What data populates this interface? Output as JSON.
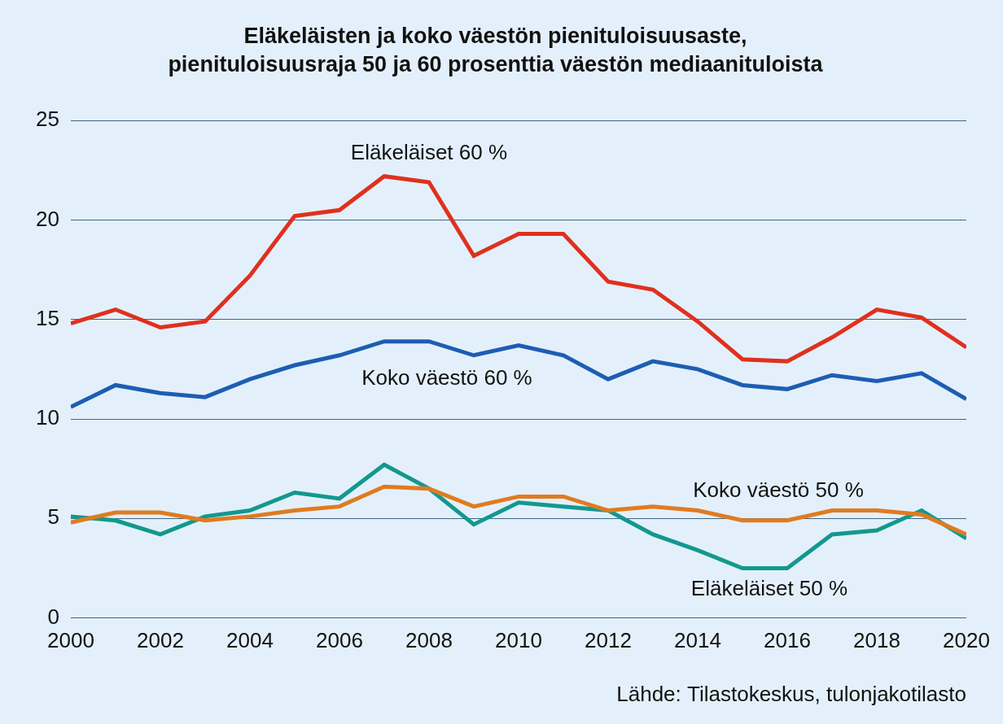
{
  "chart_data": {
    "type": "line",
    "title": [
      "Eläkeläisten ja koko väestön pienituloisuusaste,",
      "pienituloisuusraja 50 ja 60 prosenttia väestön mediaanituloista"
    ],
    "source": "Lähde: Tilastokeskus, tulonjakotilasto",
    "x": [
      2000,
      2001,
      2002,
      2003,
      2004,
      2005,
      2006,
      2007,
      2008,
      2009,
      2010,
      2011,
      2012,
      2013,
      2014,
      2015,
      2016,
      2017,
      2018,
      2019,
      2020
    ],
    "series": [
      {
        "name": "Eläkeläiset 60 %",
        "color": "#e0301e",
        "values": [
          14.8,
          15.5,
          14.6,
          14.9,
          17.2,
          20.2,
          20.5,
          22.2,
          21.9,
          18.2,
          19.3,
          19.3,
          16.9,
          16.5,
          14.9,
          13.0,
          12.9,
          14.1,
          15.5,
          15.1,
          13.6
        ]
      },
      {
        "name": "Koko väestö 60 %",
        "color": "#1d5db3",
        "values": [
          10.6,
          11.7,
          11.3,
          11.1,
          12.0,
          12.7,
          13.2,
          13.9,
          13.9,
          13.2,
          13.7,
          13.2,
          12.0,
          12.9,
          12.5,
          11.7,
          11.5,
          12.2,
          11.9,
          12.3,
          11.0
        ]
      },
      {
        "name": "Koko väestö 50 %",
        "color": "#e07b20",
        "values": [
          4.8,
          5.3,
          5.3,
          4.9,
          5.1,
          5.4,
          5.6,
          6.6,
          6.5,
          5.6,
          6.1,
          6.1,
          5.4,
          5.6,
          5.4,
          4.9,
          4.9,
          5.4,
          5.4,
          5.2,
          4.2
        ]
      },
      {
        "name": "Eläkeläiset 50 %",
        "color": "#13988e",
        "values": [
          5.1,
          4.9,
          4.2,
          5.1,
          5.4,
          6.3,
          6.0,
          7.7,
          6.5,
          4.7,
          5.8,
          5.6,
          5.4,
          4.2,
          3.4,
          2.5,
          2.5,
          4.2,
          4.4,
          5.4,
          4.0
        ]
      }
    ],
    "xlim": [
      2000,
      2020
    ],
    "xticks": [
      2000,
      2002,
      2004,
      2006,
      2008,
      2010,
      2012,
      2014,
      2016,
      2018,
      2020
    ],
    "ylim": [
      0,
      25
    ],
    "yticks": [
      0,
      5,
      10,
      15,
      20,
      25
    ],
    "grid": "y",
    "legend": false
  }
}
